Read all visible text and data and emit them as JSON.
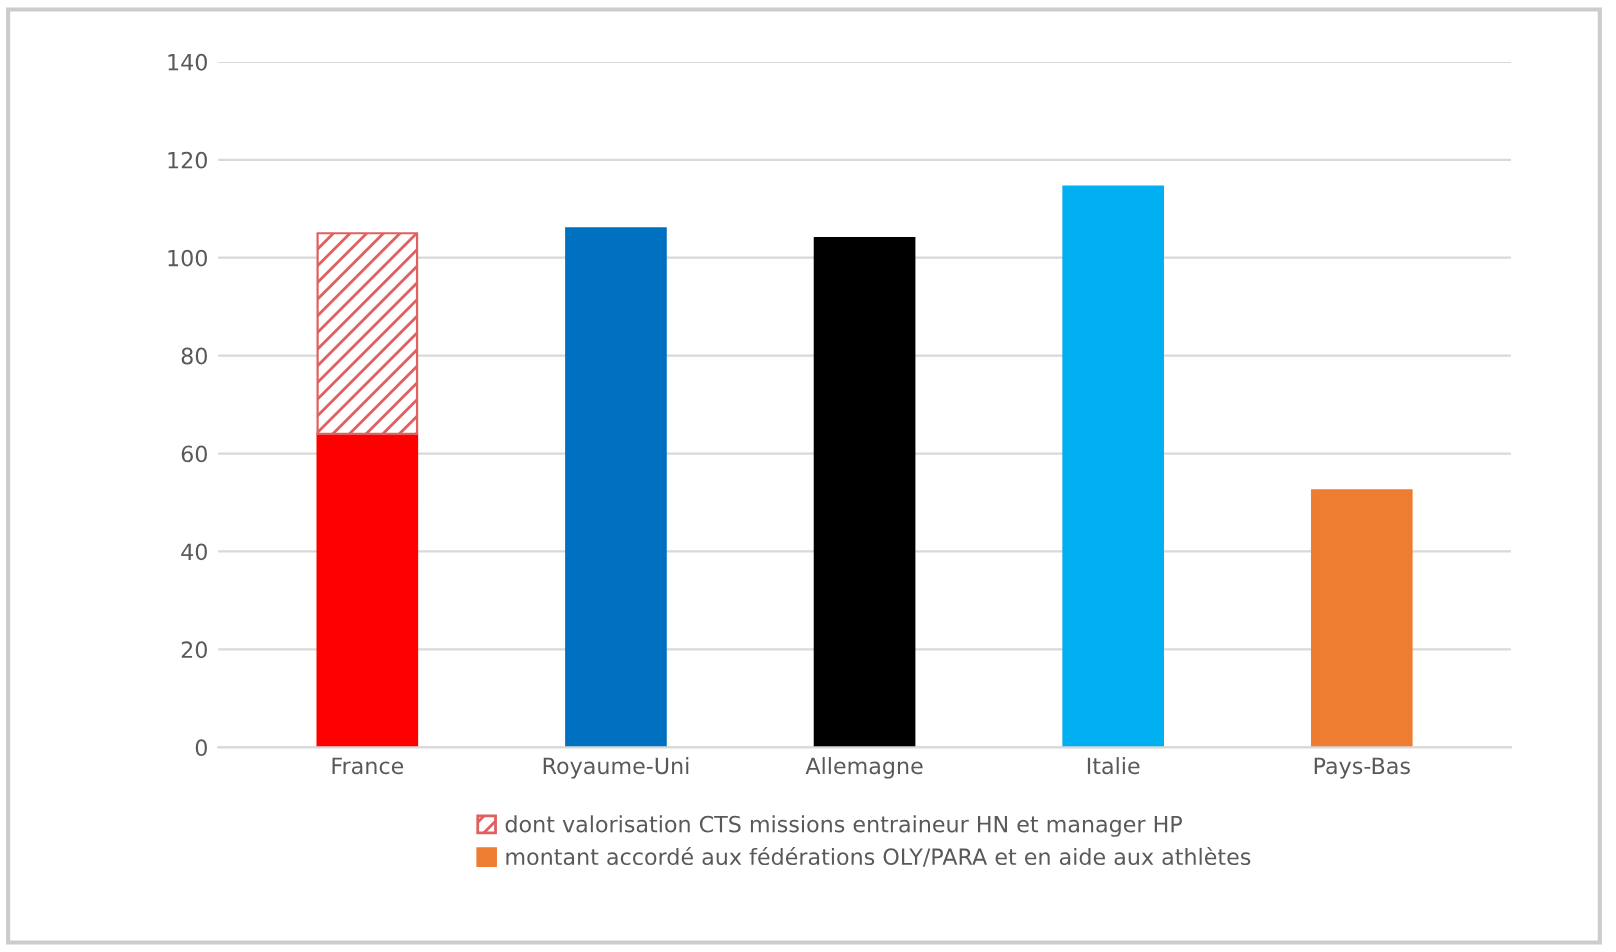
{
  "chart_data": {
    "type": "bar",
    "stacked": true,
    "categories": [
      "France",
      "Royaume-Uni",
      "Allemagne",
      "Italie",
      "Pays-Bas"
    ],
    "series": [
      {
        "name": "montant accordé aux fédérations OLY/PARA et en aide aux athlètes",
        "color": "#ed7d31",
        "colors": [
          "#ff0000",
          "#0070c0",
          "#000000",
          "#00b0f0",
          "#ed7d31"
        ],
        "values": [
          64,
          106,
          104,
          114.5,
          52.5
        ]
      },
      {
        "name": "dont valorisation CTS missions entraineur HN et manager HP",
        "color": "#e06060",
        "values": [
          41,
          null,
          null,
          null,
          null
        ]
      }
    ],
    "ylim": [
      0,
      140
    ],
    "yticks": [
      0,
      20,
      40,
      60,
      80,
      100,
      120,
      140
    ],
    "grid": "y",
    "legend": "bottom"
  }
}
